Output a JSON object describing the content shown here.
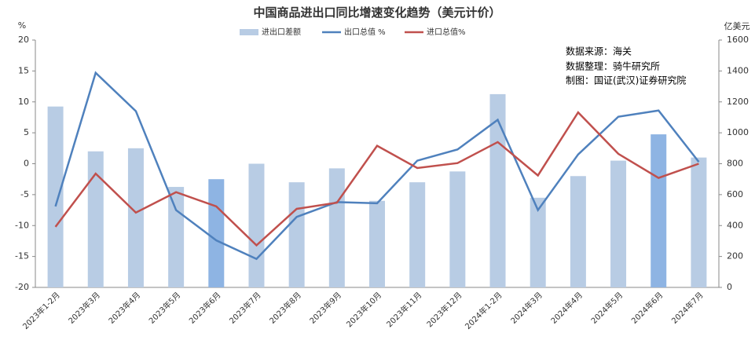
{
  "chart_data": {
    "type": "combo",
    "title": "中国商品进出口同比增速变化趋势（美元计价）",
    "ylabel": "%",
    "y2label": "亿美元",
    "annotations": [
      "数据来源：海关",
      "数据整理：骑牛研究所",
      "制图：国证(武汉)证券研究院"
    ],
    "categories": [
      "2023年1-2月",
      "2023年3月",
      "2023年4月",
      "2023年5月",
      "2023年6月",
      "2023年7月",
      "2023年8月",
      "2023年9月",
      "2023年10月",
      "2023年11月",
      "2023年12月",
      "2024年1-2月",
      "2024年3月",
      "2024年4月",
      "2024年5月",
      "2024年6月",
      "2024年7月"
    ],
    "series": [
      {
        "name": "进出口差额",
        "type": "bar",
        "axis": "y2",
        "color": "#b8cce4",
        "colors": [
          "#b8cce4",
          "#b8cce4",
          "#b8cce4",
          "#b8cce4",
          "#8eb4e3",
          "#b8cce4",
          "#b8cce4",
          "#b8cce4",
          "#b8cce4",
          "#b8cce4",
          "#b8cce4",
          "#b8cce4",
          "#b8cce4",
          "#b8cce4",
          "#b8cce4",
          "#8eb4e3",
          "#b8cce4"
        ],
        "values": [
          1170,
          880,
          900,
          650,
          700,
          800,
          680,
          770,
          560,
          680,
          750,
          1250,
          580,
          720,
          820,
          990,
          840
        ]
      },
      {
        "name": "出口总值 %",
        "type": "line",
        "color": "#4f81bd",
        "values": [
          -6.9,
          14.7,
          8.5,
          -7.5,
          -12.4,
          -15.4,
          -8.6,
          -6.2,
          -6.4,
          0.5,
          2.3,
          7.1,
          -7.5,
          1.5,
          7.6,
          8.6,
          0.3
        ]
      },
      {
        "name": "进口总值%",
        "type": "line",
        "color": "#c0504d",
        "values": [
          -10.2,
          -1.6,
          -7.9,
          -4.6,
          -6.9,
          -13.2,
          -7.3,
          -6.3,
          2.9,
          -0.7,
          0.1,
          3.5,
          -1.9,
          8.3,
          1.6,
          -2.3,
          0
        ]
      }
    ],
    "ylim": [
      -20,
      20
    ],
    "yticks": [
      -20,
      -15,
      -10,
      -5,
      0,
      5,
      10,
      15,
      20
    ],
    "y2lim": [
      0,
      1600
    ],
    "y2ticks": [
      0,
      200,
      400,
      600,
      800,
      1000,
      1200,
      1400,
      1600
    ]
  }
}
